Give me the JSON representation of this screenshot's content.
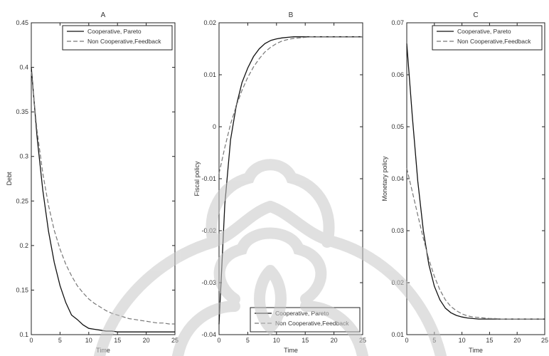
{
  "chart_data": [
    {
      "type": "line",
      "title": "A",
      "xlabel": "Time",
      "ylabel": "Debt",
      "xlim": [
        0,
        25
      ],
      "ylim": [
        0.1,
        0.45
      ],
      "xticks": [
        "0",
        "5",
        "10",
        "15",
        "20",
        "25"
      ],
      "yticks": [
        "0.1",
        "0.15",
        "0.2",
        "0.25",
        "0.3",
        "0.35",
        "0.4",
        "0.45"
      ],
      "legend_position": "top-right",
      "grid": false,
      "x": [
        0,
        1,
        2,
        3,
        4,
        5,
        6,
        7,
        8,
        9,
        10,
        11,
        12,
        13,
        14,
        15,
        16,
        17,
        18,
        19,
        20,
        21,
        22,
        23,
        24,
        25
      ],
      "series": [
        {
          "name": "Cooperative, Pareto",
          "style": "solid",
          "color": "#111111",
          "values": [
            0.4,
            0.322,
            0.262,
            0.216,
            0.181,
            0.155,
            0.136,
            0.122,
            0.117,
            0.111,
            0.107,
            0.106,
            0.105,
            0.104,
            0.104,
            0.103,
            0.103,
            0.103,
            0.103,
            0.103,
            0.103,
            0.103,
            0.103,
            0.103,
            0.103,
            0.103
          ]
        },
        {
          "name": "Non Cooperative,Feedback",
          "style": "dashed",
          "color": "#777777",
          "values": [
            0.395,
            0.329,
            0.281,
            0.245,
            0.217,
            0.196,
            0.179,
            0.166,
            0.155,
            0.147,
            0.14,
            0.135,
            0.131,
            0.127,
            0.124,
            0.122,
            0.12,
            0.118,
            0.117,
            0.116,
            0.115,
            0.114,
            0.113,
            0.113,
            0.112,
            0.112
          ]
        }
      ]
    },
    {
      "type": "line",
      "title": "B",
      "xlabel": "Time",
      "ylabel": "Fiscal policy",
      "xlim": [
        0,
        25
      ],
      "ylim": [
        -0.04,
        0.02
      ],
      "xticks": [
        "0",
        "5",
        "10",
        "15",
        "20",
        "25"
      ],
      "yticks": [
        "-0.04",
        "-0.03",
        "-0.02",
        "-0.01",
        "0",
        "0.01",
        "0.02"
      ],
      "legend_position": "bottom-right",
      "grid": false,
      "x": [
        0,
        1,
        2,
        3,
        4,
        5,
        6,
        7,
        8,
        9,
        10,
        11,
        12,
        13,
        14,
        15,
        16,
        17,
        18,
        19,
        20,
        21,
        22,
        23,
        24,
        25
      ],
      "series": [
        {
          "name": "Cooperative, Pareto",
          "style": "solid",
          "color": "#111111",
          "values": [
            -0.038,
            -0.015,
            -0.0025,
            0.004,
            0.0085,
            0.0113,
            0.0135,
            0.015,
            0.016,
            0.0166,
            0.0169,
            0.0171,
            0.0172,
            0.0173,
            0.0173,
            0.0173,
            0.0173,
            0.0173,
            0.0173,
            0.0173,
            0.0173,
            0.0173,
            0.0173,
            0.0173,
            0.0173,
            0.0173
          ]
        },
        {
          "name": "Non Cooperative,Feedback",
          "style": "dashed",
          "color": "#777777",
          "values": [
            -0.009,
            -0.004,
            0.0005,
            0.004,
            0.007,
            0.0095,
            0.0115,
            0.0131,
            0.0144,
            0.0153,
            0.016,
            0.0165,
            0.0168,
            0.017,
            0.0171,
            0.0172,
            0.0173,
            0.0173,
            0.0173,
            0.0173,
            0.0173,
            0.0173,
            0.0173,
            0.0173,
            0.0173,
            0.0173
          ]
        }
      ]
    },
    {
      "type": "line",
      "title": "C",
      "xlabel": "Time",
      "ylabel": "Monetary policy",
      "xlim": [
        0,
        25
      ],
      "ylim": [
        0.01,
        0.07
      ],
      "xticks": [
        "0",
        "5",
        "10",
        "15",
        "20",
        "25"
      ],
      "yticks": [
        "0.01",
        "0.02",
        "0.03",
        "0.04",
        "0.05",
        "0.06",
        "0.07"
      ],
      "legend_position": "top-right",
      "grid": false,
      "x": [
        0,
        1,
        2,
        3,
        4,
        5,
        6,
        7,
        8,
        9,
        10,
        11,
        12,
        13,
        14,
        15,
        16,
        17,
        18,
        19,
        20,
        21,
        22,
        23,
        24,
        25
      ],
      "series": [
        {
          "name": "Cooperative, Pareto",
          "style": "solid",
          "color": "#111111",
          "values": [
            0.066,
            0.052,
            0.0395,
            0.03,
            0.0235,
            0.0193,
            0.0167,
            0.0151,
            0.0142,
            0.0137,
            0.0134,
            0.0132,
            0.0131,
            0.013,
            0.013,
            0.013,
            0.013,
            0.013,
            0.013,
            0.013,
            0.013,
            0.013,
            0.013,
            0.013,
            0.013,
            0.013
          ]
        },
        {
          "name": "Non Cooperative,Feedback",
          "style": "dashed",
          "color": "#777777",
          "values": [
            0.042,
            0.0375,
            0.033,
            0.0285,
            0.0245,
            0.0212,
            0.0186,
            0.0167,
            0.0154,
            0.0146,
            0.014,
            0.0136,
            0.0134,
            0.0133,
            0.0132,
            0.0131,
            0.0131,
            0.013,
            0.013,
            0.013,
            0.013,
            0.013,
            0.013,
            0.013,
            0.013,
            0.013
          ]
        }
      ]
    }
  ]
}
